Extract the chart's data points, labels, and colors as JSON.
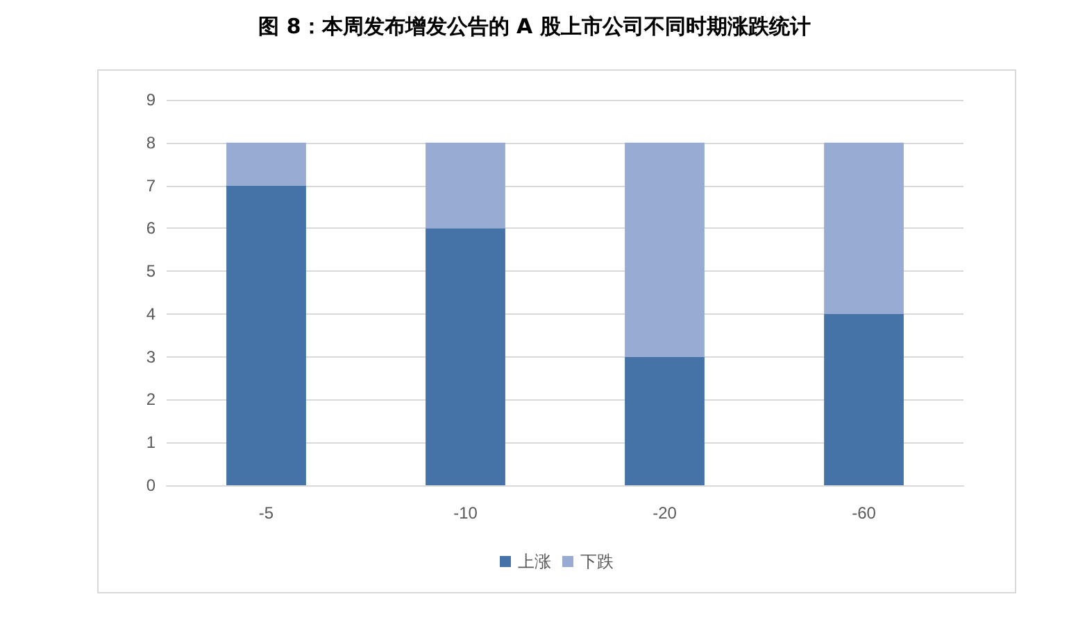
{
  "chart_data": {
    "type": "bar",
    "title": "图 8：本周发布增发公告的 A 股上市公司不同时期涨跌统计",
    "categories": [
      "-5",
      "-10",
      "-20",
      "-60"
    ],
    "series": [
      {
        "name": "上涨",
        "color": "#4573a7",
        "values": [
          7,
          6,
          3,
          4
        ]
      },
      {
        "name": "下跌",
        "color": "#98abd2",
        "values": [
          1,
          2,
          5,
          4
        ]
      }
    ],
    "stacked": true,
    "ylim": [
      0,
      9
    ],
    "yticks": [
      0,
      1,
      2,
      3,
      4,
      5,
      6,
      7,
      8,
      9
    ],
    "grid": "y",
    "legend": "bottom"
  }
}
